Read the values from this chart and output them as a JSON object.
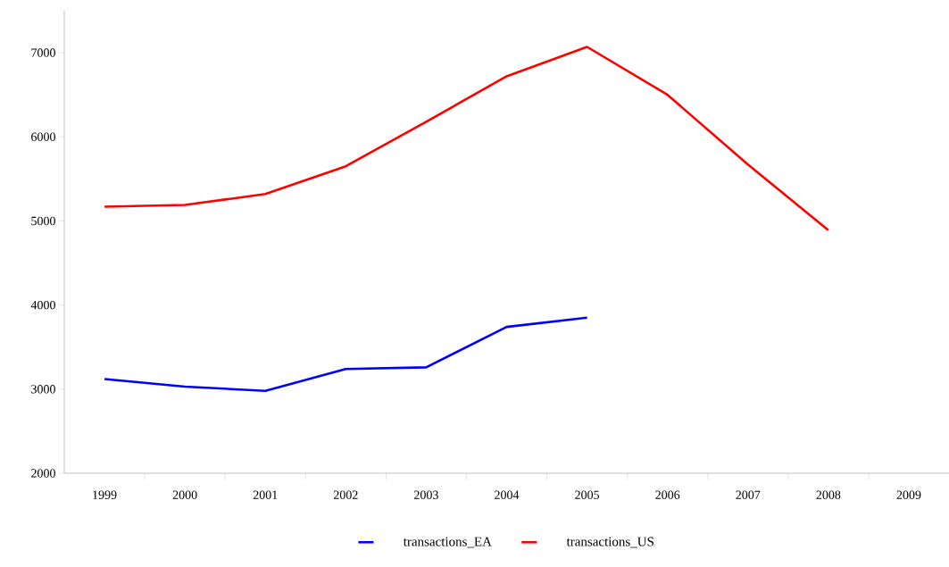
{
  "chart_data": {
    "type": "line",
    "categories": [
      "1999",
      "2000",
      "2001",
      "2002",
      "2003",
      "2004",
      "2005",
      "2006",
      "2007",
      "2008",
      "2009"
    ],
    "series": [
      {
        "name": "transactions_EA",
        "color": "#0000ff",
        "values": [
          3120,
          3030,
          2980,
          3240,
          3260,
          3740,
          3850,
          null,
          null,
          null,
          null
        ]
      },
      {
        "name": "transactions_US",
        "color": "#ff0000",
        "values": [
          5170,
          5190,
          5320,
          5650,
          6180,
          6720,
          7070,
          6500,
          5670,
          4890,
          null
        ]
      }
    ],
    "ylim": [
      2000,
      7500
    ],
    "yticks": [
      2000,
      3000,
      4000,
      5000,
      6000,
      7000
    ],
    "grid": false,
    "legend": "bottom",
    "marker": "none",
    "line_style": "solid"
  }
}
